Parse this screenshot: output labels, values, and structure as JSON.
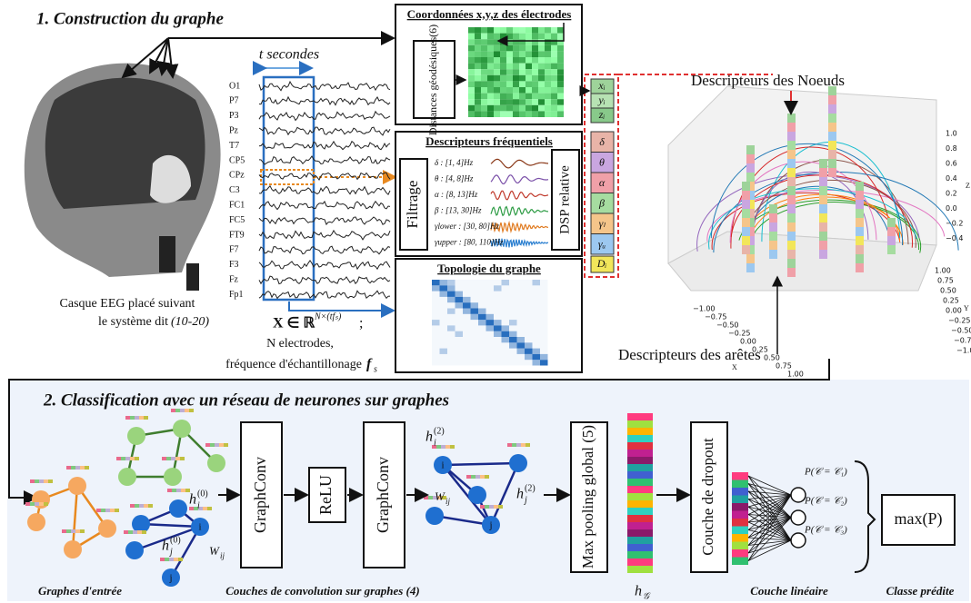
{
  "section1": {
    "title": "1. Construction du graphe",
    "time_label": "t secondes",
    "electrodes": [
      "O1",
      "P7",
      "P3",
      "Pz",
      "T7",
      "CP5",
      "CPz",
      "C3",
      "FC1",
      "FC5",
      "FT9",
      "F7",
      "F3",
      "Fz",
      "Fp1"
    ],
    "caption": {
      "line1": "Casque EEG placé suivant",
      "line2": "le système dit",
      "norm": "(10-20)"
    },
    "equation": {
      "base": "X ∈ ℝ",
      "exponent": "N×(tfₛ)",
      "end": ";"
    },
    "electrodes_count": "N electrodes,",
    "sampling": {
      "text": "fréquence d'échantillonage",
      "symbol": "f",
      "sub": "s"
    },
    "coordinates": {
      "title": "Coordonnées x,y,z des électrodes",
      "distances": "Distances géodésiques(6)"
    },
    "coord_features": [
      "xᵢ",
      "yᵢ",
      "zᵢ"
    ],
    "frequency": {
      "title": "Descripteurs fréquentiels",
      "filter": "Filtrage",
      "bands": [
        "δ : [1, 4]Hz",
        "θ : [4, 8]Hz",
        "α : [8, 13]Hz",
        "β : [13, 30]Hz",
        "γlower : [30, 80]Hz",
        "γupper : [80, 110]Hz"
      ],
      "dsp": "DSP relative"
    },
    "freq_features": [
      "δ",
      "θ",
      "α",
      "β",
      "γₗ",
      "γᵤ"
    ],
    "degree_feature": "Dᵢ",
    "topology": {
      "title": "Topologie du graphe"
    },
    "node_descriptors": "Descripteurs des Noeuds",
    "edge_descriptors": "Descripteurs des arêtes",
    "plot3d": {
      "z_ticks": [
        "1.0",
        "0.8",
        "0.6",
        "0.4",
        "0.2",
        "0.0",
        "−0.2",
        "−0.4"
      ],
      "x_ticks": [
        "−1.00",
        "−0.75",
        "−0.50",
        "−0.25",
        "0.00",
        "0.25",
        "0.50",
        "0.75",
        "1.00"
      ],
      "y_ticks": [
        "1.00",
        "0.75",
        "0.50",
        "0.25",
        "0.00",
        "−0.25",
        "−0.50",
        "−0.75",
        "−1.00"
      ],
      "x_label": "X",
      "y_label": "Y",
      "z_label": "Z"
    }
  },
  "section2": {
    "title": "2. Classification avec un réseau de neurones sur graphes",
    "graphconv1": "GraphConv",
    "relu": "ReLU",
    "graphconv2": "GraphConv",
    "pooling": "Max pooling global (5)",
    "dropout": "Couche de dropout",
    "output": "max(P)",
    "node_i": "i",
    "node_j": "j",
    "h": "h",
    "sup0": "(0)",
    "sup2": "(2)",
    "weight": {
      "base": "W",
      "sub": "ij"
    },
    "hg": {
      "base": "h",
      "sub": "𝒢"
    },
    "probabilities": [
      "P(𝒞 = 𝒞₁)",
      "P(𝒞 = 𝒞₂)",
      "P(𝒞 = 𝒞₃)"
    ],
    "captions": {
      "inputs": "Graphes d'entrée",
      "convs": "Couches de convolution sur graphes (4)",
      "linear": "Couche linéaire",
      "predicted": "Classe prédite"
    }
  }
}
